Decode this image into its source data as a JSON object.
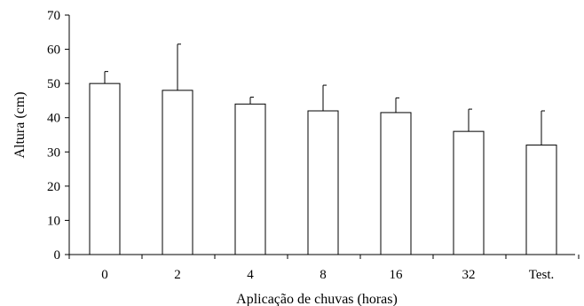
{
  "chart_data": {
    "type": "bar",
    "title": "",
    "xlabel": "Aplicação de chuvas (horas)",
    "ylabel": "Altura (cm)",
    "categories": [
      "0",
      "2",
      "4",
      "8",
      "16",
      "32",
      "Test."
    ],
    "values": [
      50,
      48,
      44,
      42,
      41.5,
      36,
      32
    ],
    "error_upper": [
      3.5,
      13.5,
      2,
      7.5,
      4.3,
      6.5,
      10
    ],
    "ylim": [
      0,
      70
    ],
    "yticks": [
      0,
      10,
      20,
      30,
      40,
      50,
      60,
      70
    ],
    "grid": false,
    "legend": "none",
    "colors": {
      "bar_fill": "#ffffff",
      "bar_stroke": "#000000",
      "axis": "#000000",
      "error_bar": "#000000"
    }
  }
}
